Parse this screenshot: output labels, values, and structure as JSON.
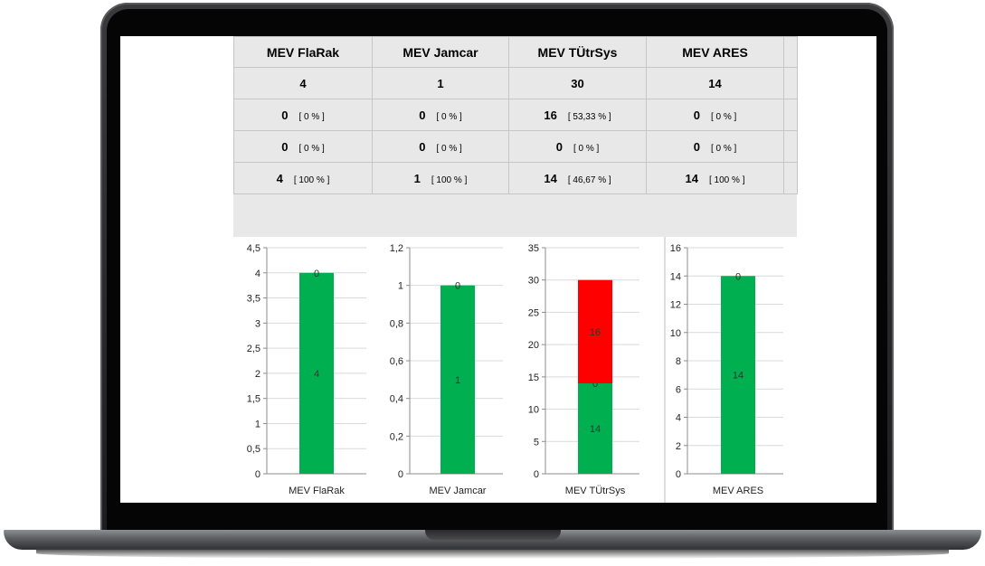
{
  "table": {
    "headers": [
      "MEV FlaRak",
      "MEV Jamcar",
      "MEV TÜtrSys",
      "MEV ARES"
    ],
    "totals": [
      "4",
      "1",
      "30",
      "14"
    ],
    "rows": [
      [
        {
          "v": "0",
          "p": "[ 0 % ]"
        },
        {
          "v": "0",
          "p": "[ 0 % ]"
        },
        {
          "v": "16",
          "p": "[ 53,33 % ]"
        },
        {
          "v": "0",
          "p": "[ 0 % ]"
        }
      ],
      [
        {
          "v": "0",
          "p": "[ 0 % ]"
        },
        {
          "v": "0",
          "p": "[ 0 % ]"
        },
        {
          "v": "0",
          "p": "[ 0 % ]"
        },
        {
          "v": "0",
          "p": "[ 0 % ]"
        }
      ],
      [
        {
          "v": "4",
          "p": "[ 100 % ]"
        },
        {
          "v": "1",
          "p": "[ 100 % ]"
        },
        {
          "v": "14",
          "p": "[ 46,67 % ]"
        },
        {
          "v": "14",
          "p": "[ 100 % ]"
        }
      ]
    ]
  },
  "colors": {
    "green": "#00b050",
    "red": "#ff0000",
    "gridline": "#d9d9d9"
  },
  "chart_data": [
    {
      "type": "bar",
      "categories": [
        "MEV FlaRak"
      ],
      "ylim": [
        0,
        4.5
      ],
      "yticks": [
        "0",
        "0,5",
        "1",
        "1,5",
        "2",
        "2,5",
        "3",
        "3,5",
        "4",
        "4,5"
      ],
      "series": [
        {
          "color": "#00b050",
          "values": [
            4
          ],
          "labels": [
            "4"
          ]
        },
        {
          "color": "#00b050",
          "values": [
            0
          ],
          "labels": [
            "0"
          ]
        }
      ]
    },
    {
      "type": "bar",
      "categories": [
        "MEV Jamcar"
      ],
      "ylim": [
        0,
        1.2
      ],
      "yticks": [
        "0",
        "0,2",
        "0,4",
        "0,6",
        "0,8",
        "1",
        "1,2"
      ],
      "series": [
        {
          "color": "#00b050",
          "values": [
            1
          ],
          "labels": [
            "1"
          ]
        },
        {
          "color": "#00b050",
          "values": [
            0
          ],
          "labels": [
            "0"
          ]
        }
      ]
    },
    {
      "type": "bar",
      "categories": [
        "MEV TÜtrSys"
      ],
      "ylim": [
        0,
        35
      ],
      "yticks": [
        "0",
        "5",
        "10",
        "15",
        "20",
        "25",
        "30",
        "35"
      ],
      "series": [
        {
          "color": "#00b050",
          "values": [
            14
          ],
          "labels": [
            "14"
          ]
        },
        {
          "color": "#00b050",
          "values": [
            0
          ],
          "labels": [
            "0"
          ]
        },
        {
          "color": "#ff0000",
          "values": [
            16
          ],
          "labels": [
            "16"
          ]
        }
      ]
    },
    {
      "type": "bar",
      "categories": [
        "MEV ARES"
      ],
      "ylim": [
        0,
        16
      ],
      "yticks": [
        "0",
        "2",
        "4",
        "6",
        "8",
        "10",
        "12",
        "14",
        "16"
      ],
      "series": [
        {
          "color": "#00b050",
          "values": [
            14
          ],
          "labels": [
            "14"
          ]
        },
        {
          "color": "#00b050",
          "values": [
            0
          ],
          "labels": [
            "0"
          ]
        }
      ]
    }
  ]
}
